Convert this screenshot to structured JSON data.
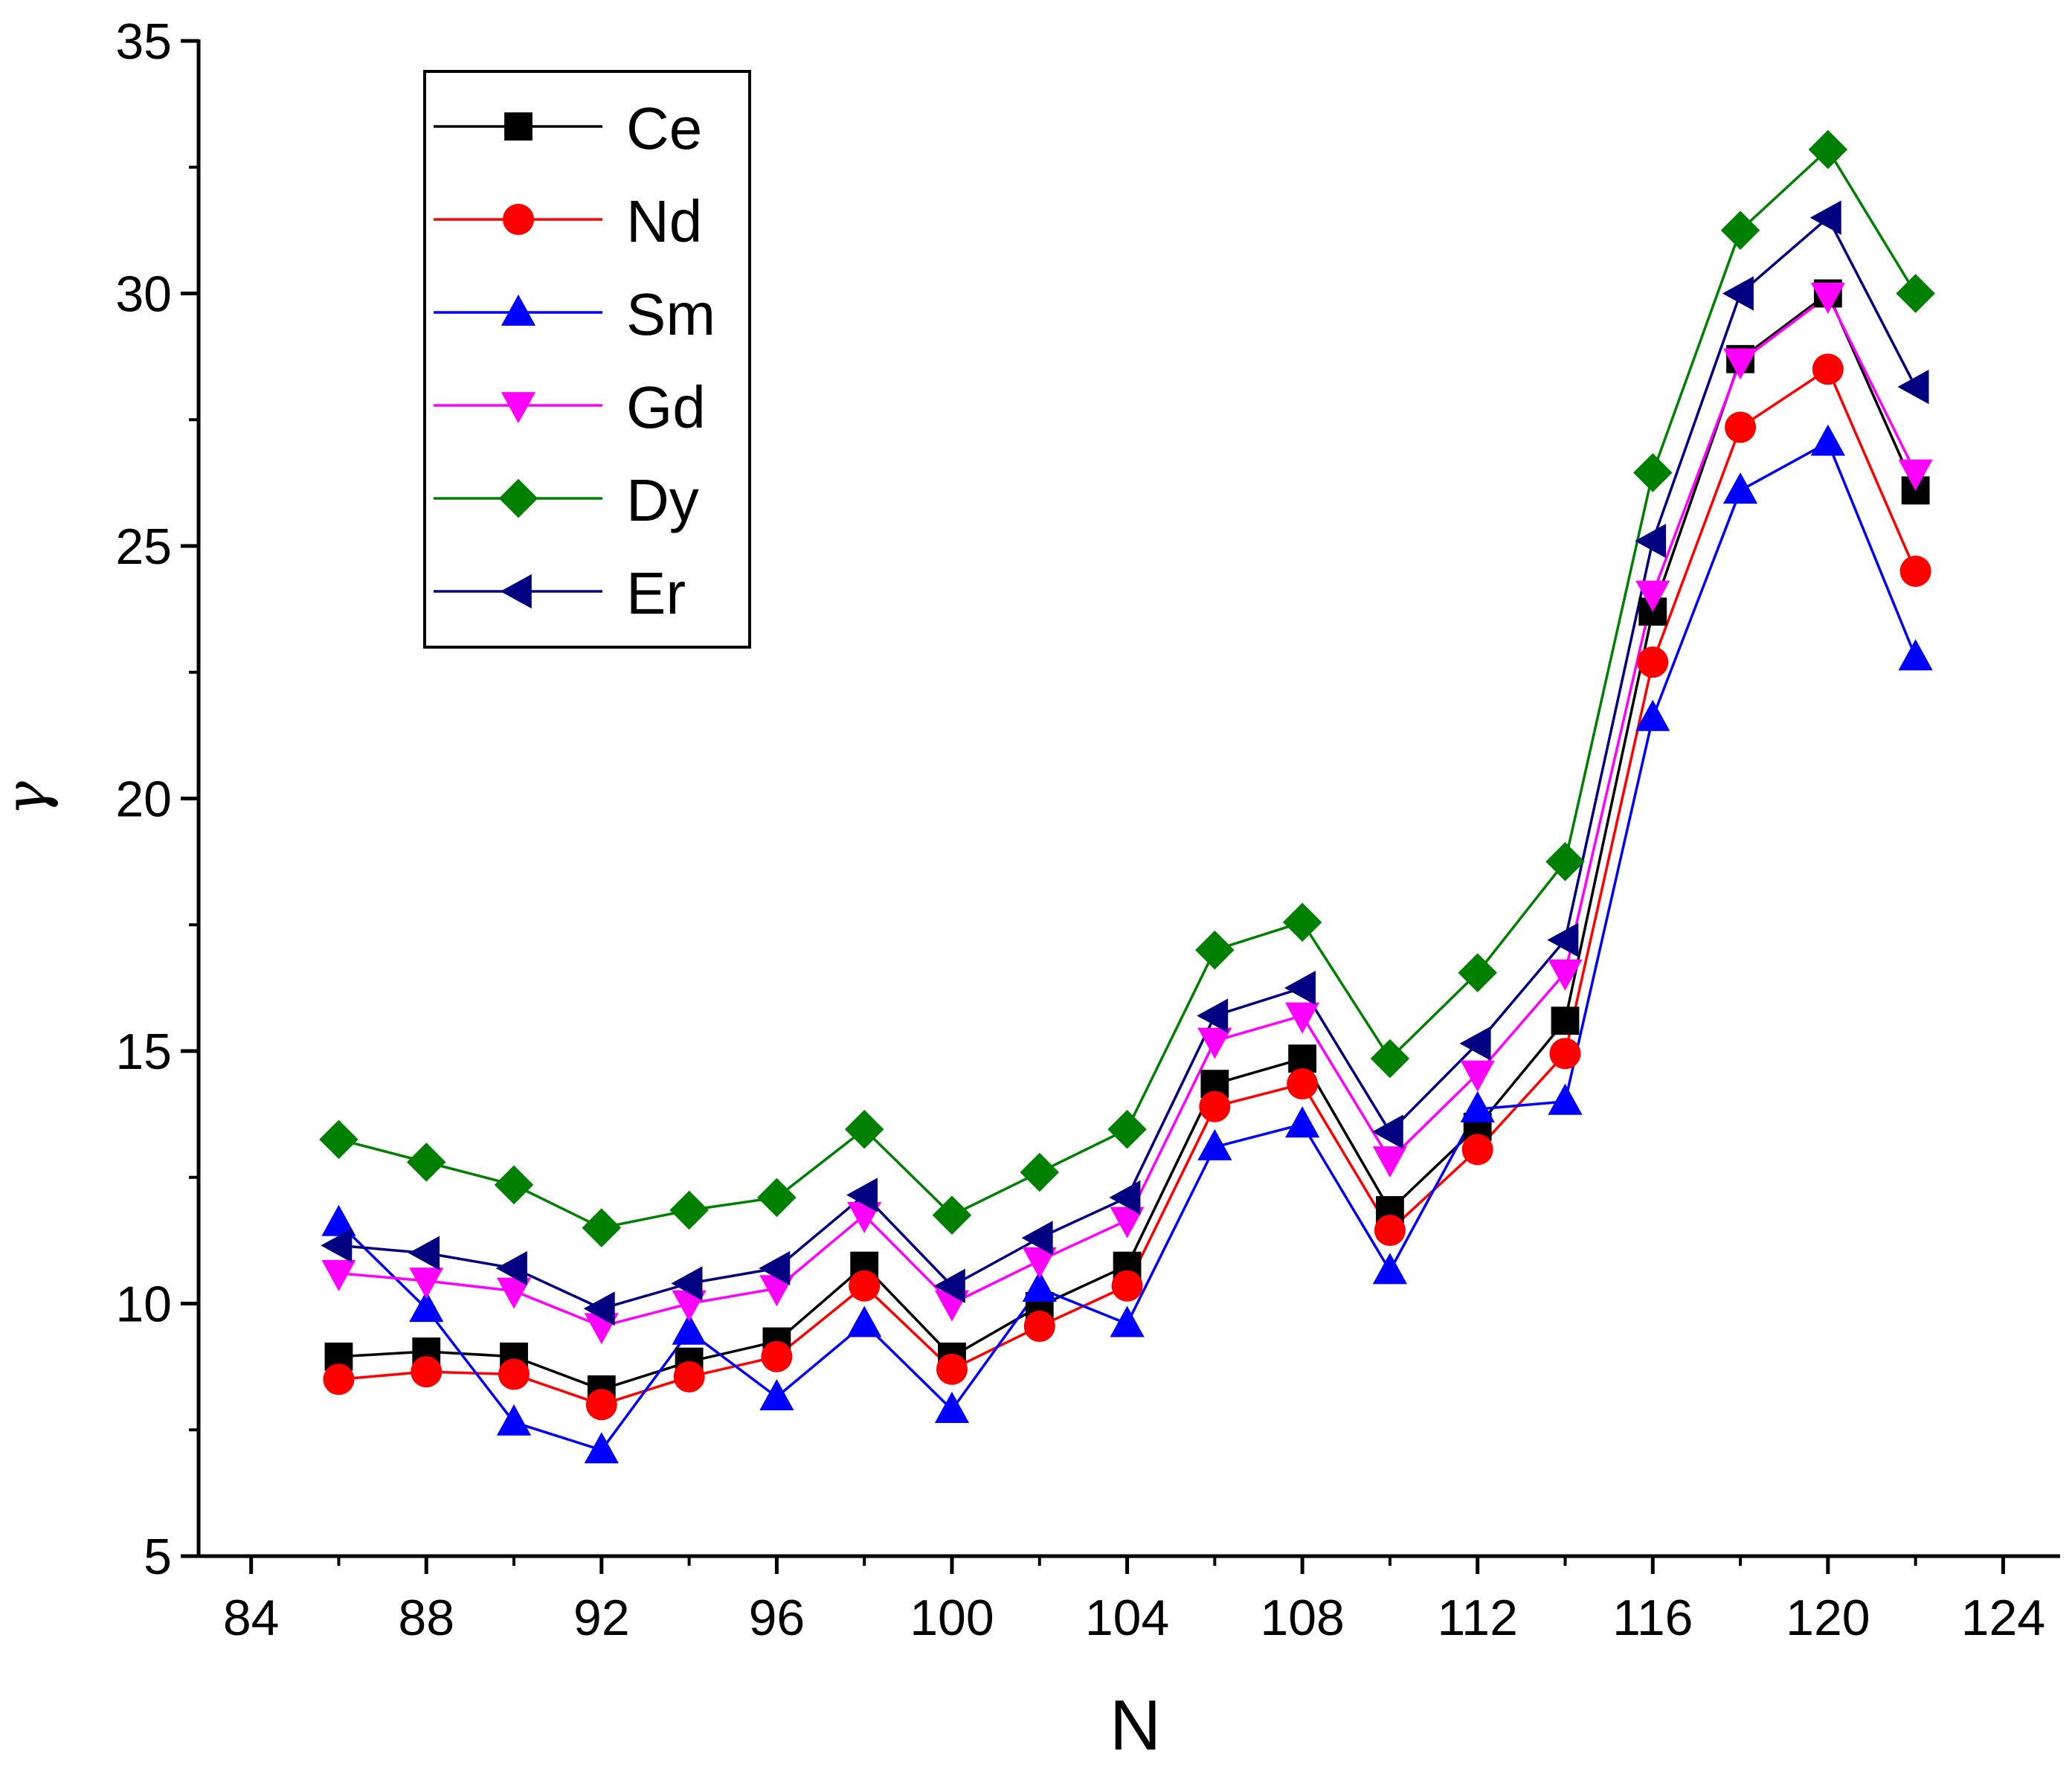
{
  "chart_data": {
    "type": "line",
    "title": "",
    "xlabel": "N",
    "ylabel": "γ",
    "xlim": [
      82.8,
      125.3
    ],
    "ylim": [
      5,
      35
    ],
    "xticks": [
      84,
      88,
      92,
      96,
      100,
      104,
      108,
      112,
      116,
      120,
      124
    ],
    "xtick_labels": [
      "84",
      "88",
      "92",
      "96",
      "100",
      "104",
      "108",
      "112",
      "116",
      "120",
      "124"
    ],
    "yticks": [
      5,
      10,
      15,
      20,
      25,
      30,
      35
    ],
    "ytick_labels": [
      "5",
      "10",
      "15",
      "20",
      "25",
      "30",
      "35"
    ],
    "grid": false,
    "legend_position": "top-left",
    "x": [
      86,
      88,
      90,
      92,
      94,
      96,
      98,
      100,
      102,
      104,
      106,
      108,
      110,
      112,
      114,
      116,
      118,
      120,
      122
    ],
    "series": [
      {
        "name": "Ce",
        "color": "#000000",
        "marker": "square",
        "values": [
          8.95,
          9.05,
          8.95,
          8.3,
          8.85,
          9.25,
          10.75,
          8.95,
          9.95,
          10.75,
          14.35,
          14.85,
          11.85,
          13.5,
          15.6,
          23.7,
          28.7,
          30.0,
          26.1
        ]
      },
      {
        "name": "Nd",
        "color": "#ff0000",
        "marker": "circle",
        "values": [
          8.5,
          8.65,
          8.6,
          8.0,
          8.55,
          8.95,
          10.35,
          8.7,
          9.55,
          10.35,
          13.9,
          14.35,
          11.45,
          13.05,
          14.95,
          22.7,
          27.35,
          28.5,
          24.5
        ]
      },
      {
        "name": "Sm",
        "color": "#0000ff",
        "marker": "triangle-up",
        "values": [
          11.6,
          9.9,
          7.65,
          7.1,
          9.45,
          8.15,
          9.6,
          7.9,
          10.3,
          9.6,
          13.1,
          13.55,
          10.65,
          13.85,
          14.0,
          21.6,
          26.1,
          27.05,
          22.8
        ]
      },
      {
        "name": "Gd",
        "color": "#ff00ff",
        "marker": "triangle-down",
        "values": [
          10.6,
          10.45,
          10.25,
          9.55,
          10.0,
          10.3,
          11.75,
          10.0,
          10.85,
          11.65,
          15.2,
          15.7,
          12.85,
          14.55,
          16.55,
          24.05,
          28.65,
          29.95,
          26.45
        ]
      },
      {
        "name": "Dy",
        "color": "#008000",
        "marker": "diamond",
        "values": [
          13.25,
          12.8,
          12.35,
          11.5,
          11.85,
          12.1,
          13.45,
          11.75,
          12.6,
          13.45,
          17.0,
          17.55,
          14.85,
          16.55,
          18.75,
          26.45,
          31.25,
          32.85,
          30.0
        ]
      },
      {
        "name": "Er",
        "color": "#000080",
        "marker": "triangle-left",
        "values": [
          11.15,
          11.0,
          10.7,
          9.9,
          10.4,
          10.7,
          12.15,
          10.35,
          11.3,
          12.1,
          15.7,
          16.25,
          13.4,
          15.15,
          17.2,
          25.1,
          30.0,
          31.5,
          28.15
        ]
      }
    ]
  }
}
